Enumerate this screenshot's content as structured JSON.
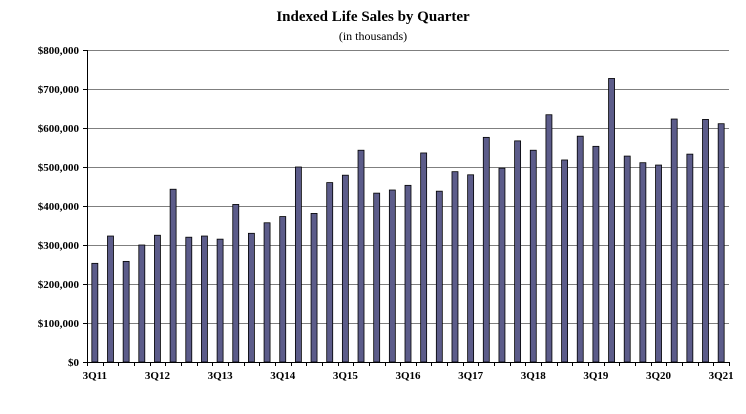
{
  "chart_data": {
    "type": "bar",
    "title": "Indexed Life Sales by Quarter",
    "subtitle": "(in thousands)",
    "xlabel": "",
    "ylabel": "",
    "ylim": [
      0,
      800000
    ],
    "grid": true,
    "legend": "none",
    "bar_color": "#5c5c8a",
    "bar_edge_color": "#000000",
    "gridline_color": "#000000",
    "y_ticks": [
      0,
      100000,
      200000,
      300000,
      400000,
      500000,
      600000,
      700000,
      800000
    ],
    "y_tick_labels": [
      "$0",
      "$100,000",
      "$200,000",
      "$300,000",
      "$400,000",
      "$500,000",
      "$600,000",
      "$700,000",
      "$800,000"
    ],
    "categories": [
      "3Q11",
      "4Q11",
      "1Q12",
      "2Q12",
      "3Q12",
      "4Q12",
      "1Q13",
      "2Q13",
      "3Q13",
      "4Q13",
      "1Q14",
      "2Q14",
      "3Q14",
      "4Q14",
      "1Q15",
      "2Q15",
      "3Q15",
      "4Q15",
      "1Q16",
      "2Q16",
      "3Q16",
      "4Q16",
      "1Q17",
      "2Q17",
      "3Q17",
      "4Q17",
      "1Q18",
      "2Q18",
      "3Q18",
      "4Q18",
      "1Q19",
      "2Q19",
      "3Q19",
      "4Q19",
      "1Q20",
      "2Q20",
      "3Q20",
      "4Q20",
      "1Q21",
      "2Q21",
      "3Q21"
    ],
    "x_tick_labels": [
      {
        "index": 0,
        "label": "3Q11"
      },
      {
        "index": 4,
        "label": "3Q12"
      },
      {
        "index": 8,
        "label": "3Q13"
      },
      {
        "index": 12,
        "label": "3Q14"
      },
      {
        "index": 16,
        "label": "3Q15"
      },
      {
        "index": 20,
        "label": "3Q16"
      },
      {
        "index": 24,
        "label": "3Q17"
      },
      {
        "index": 28,
        "label": "3Q18"
      },
      {
        "index": 32,
        "label": "3Q19"
      },
      {
        "index": 36,
        "label": "3Q20"
      },
      {
        "index": 40,
        "label": "3Q21"
      }
    ],
    "values": [
      253000,
      323000,
      258000,
      300000,
      325000,
      443000,
      320000,
      323000,
      315000,
      404000,
      330000,
      357000,
      373000,
      500000,
      381000,
      460000,
      479000,
      543000,
      433000,
      441000,
      453000,
      536000,
      438000,
      488000,
      480000,
      576000,
      497000,
      567000,
      543000,
      634000,
      518000,
      579000,
      553000,
      727000,
      528000,
      511000,
      505000,
      623000,
      533000,
      622000,
      611000
    ]
  }
}
